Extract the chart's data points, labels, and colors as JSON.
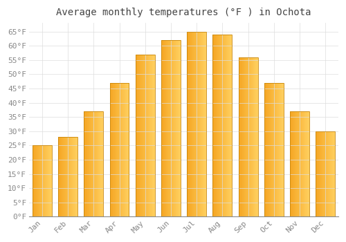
{
  "title": "Average monthly temperatures (°F ) in Ochota",
  "months": [
    "Jan",
    "Feb",
    "Mar",
    "Apr",
    "May",
    "Jun",
    "Jul",
    "Aug",
    "Sep",
    "Oct",
    "Nov",
    "Dec"
  ],
  "values": [
    25,
    28,
    37,
    47,
    57,
    62,
    65,
    64,
    56,
    47,
    37,
    30
  ],
  "bar_color_left": "#F5A623",
  "bar_color_right": "#FFD060",
  "bar_edge_color": "#C8860A",
  "background_color": "#FFFFFF",
  "plot_bg_color": "#FFFFFF",
  "grid_color": "#DDDDDD",
  "ylim": [
    0,
    68
  ],
  "yticks": [
    0,
    5,
    10,
    15,
    20,
    25,
    30,
    35,
    40,
    45,
    50,
    55,
    60,
    65
  ],
  "title_fontsize": 10,
  "tick_fontsize": 8,
  "tick_color": "#888888",
  "label_color": "#888888",
  "font_family": "monospace",
  "bar_width": 0.75
}
